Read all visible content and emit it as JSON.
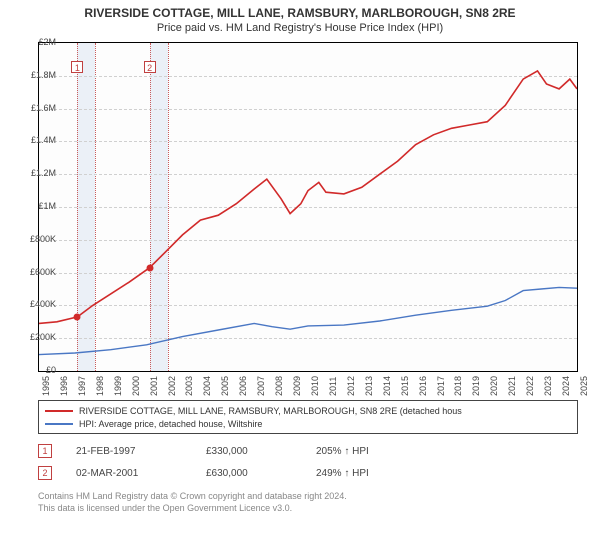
{
  "title": "RIVERSIDE COTTAGE, MILL LANE, RAMSBURY, MARLBOROUGH, SN8 2RE",
  "subtitle": "Price paid vs. HM Land Registry's House Price Index (HPI)",
  "chart": {
    "type": "line",
    "background_color": "#fdfdfd",
    "grid_color": "#d0d0d0",
    "border_color": "#000000",
    "shade_fill": "#e8eef7",
    "shade_line": "#c04040",
    "x": {
      "min": 1995,
      "max": 2025,
      "ticks": [
        1995,
        1996,
        1997,
        1998,
        1999,
        2000,
        2001,
        2002,
        2003,
        2004,
        2005,
        2006,
        2007,
        2008,
        2009,
        2010,
        2011,
        2012,
        2013,
        2014,
        2015,
        2016,
        2017,
        2018,
        2019,
        2020,
        2021,
        2022,
        2023,
        2024,
        2025
      ]
    },
    "y": {
      "min": 0,
      "max": 2000000,
      "tick_step": 200000,
      "tick_labels": [
        "£0",
        "£200K",
        "£400K",
        "£600K",
        "£800K",
        "£1M",
        "£1.2M",
        "£1.4M",
        "£1.6M",
        "£1.8M",
        "£2M"
      ]
    },
    "shaded_ranges": [
      {
        "from": 1997.14,
        "to": 1998.14
      },
      {
        "from": 2001.17,
        "to": 2002.17
      }
    ],
    "series": [
      {
        "name": "subject",
        "label": "RIVERSIDE COTTAGE, MILL LANE, RAMSBURY, MARLBOROUGH, SN8 2RE (detached hous",
        "color": "#d12a2a",
        "line_width": 1.6,
        "points": [
          [
            1995,
            290000
          ],
          [
            1996,
            300000
          ],
          [
            1997.14,
            330000
          ],
          [
            1998,
            400000
          ],
          [
            1999,
            470000
          ],
          [
            2000,
            540000
          ],
          [
            2001.17,
            630000
          ],
          [
            2002,
            720000
          ],
          [
            2003,
            830000
          ],
          [
            2004,
            920000
          ],
          [
            2005,
            950000
          ],
          [
            2006,
            1020000
          ],
          [
            2007,
            1110000
          ],
          [
            2007.7,
            1170000
          ],
          [
            2008.5,
            1050000
          ],
          [
            2009,
            960000
          ],
          [
            2009.6,
            1020000
          ],
          [
            2010,
            1100000
          ],
          [
            2010.6,
            1150000
          ],
          [
            2011,
            1090000
          ],
          [
            2012,
            1080000
          ],
          [
            2013,
            1120000
          ],
          [
            2014,
            1200000
          ],
          [
            2015,
            1280000
          ],
          [
            2016,
            1380000
          ],
          [
            2017,
            1440000
          ],
          [
            2018,
            1480000
          ],
          [
            2019,
            1500000
          ],
          [
            2020,
            1520000
          ],
          [
            2021,
            1620000
          ],
          [
            2022,
            1780000
          ],
          [
            2022.8,
            1830000
          ],
          [
            2023.3,
            1750000
          ],
          [
            2024,
            1720000
          ],
          [
            2024.6,
            1780000
          ],
          [
            2025,
            1720000
          ]
        ]
      },
      {
        "name": "hpi",
        "label": "HPI: Average price, detached house, Wiltshire",
        "color": "#4a77c4",
        "line_width": 1.4,
        "points": [
          [
            1995,
            100000
          ],
          [
            1997,
            110000
          ],
          [
            1999,
            130000
          ],
          [
            2001,
            160000
          ],
          [
            2003,
            210000
          ],
          [
            2005,
            250000
          ],
          [
            2007,
            290000
          ],
          [
            2008,
            270000
          ],
          [
            2009,
            255000
          ],
          [
            2010,
            275000
          ],
          [
            2012,
            280000
          ],
          [
            2014,
            305000
          ],
          [
            2016,
            340000
          ],
          [
            2018,
            370000
          ],
          [
            2020,
            395000
          ],
          [
            2021,
            430000
          ],
          [
            2022,
            490000
          ],
          [
            2023,
            500000
          ],
          [
            2024,
            510000
          ],
          [
            2025,
            505000
          ]
        ]
      }
    ],
    "markers": [
      {
        "n": "1",
        "x": 1997.14,
        "y": 330000,
        "color": "#d12a2a",
        "box_y_offset": -48
      },
      {
        "n": "2",
        "x": 2001.17,
        "y": 630000,
        "color": "#d12a2a",
        "box_y_offset": -48
      }
    ]
  },
  "legend": {
    "items": [
      {
        "color": "#d12a2a",
        "text": "RIVERSIDE COTTAGE, MILL LANE, RAMSBURY, MARLBOROUGH, SN8 2RE (detached hous"
      },
      {
        "color": "#4a77c4",
        "text": "HPI: Average price, detached house, Wiltshire"
      }
    ]
  },
  "sales": [
    {
      "n": "1",
      "date": "21-FEB-1997",
      "price": "£330,000",
      "pct": "205% ↑ HPI"
    },
    {
      "n": "2",
      "date": "02-MAR-2001",
      "price": "£630,000",
      "pct": "249% ↑ HPI"
    }
  ],
  "footer": {
    "line1": "Contains HM Land Registry data © Crown copyright and database right 2024.",
    "line2": "This data is licensed under the Open Government Licence v3.0."
  },
  "label_fontsize": 9,
  "title_fontsize": 12
}
